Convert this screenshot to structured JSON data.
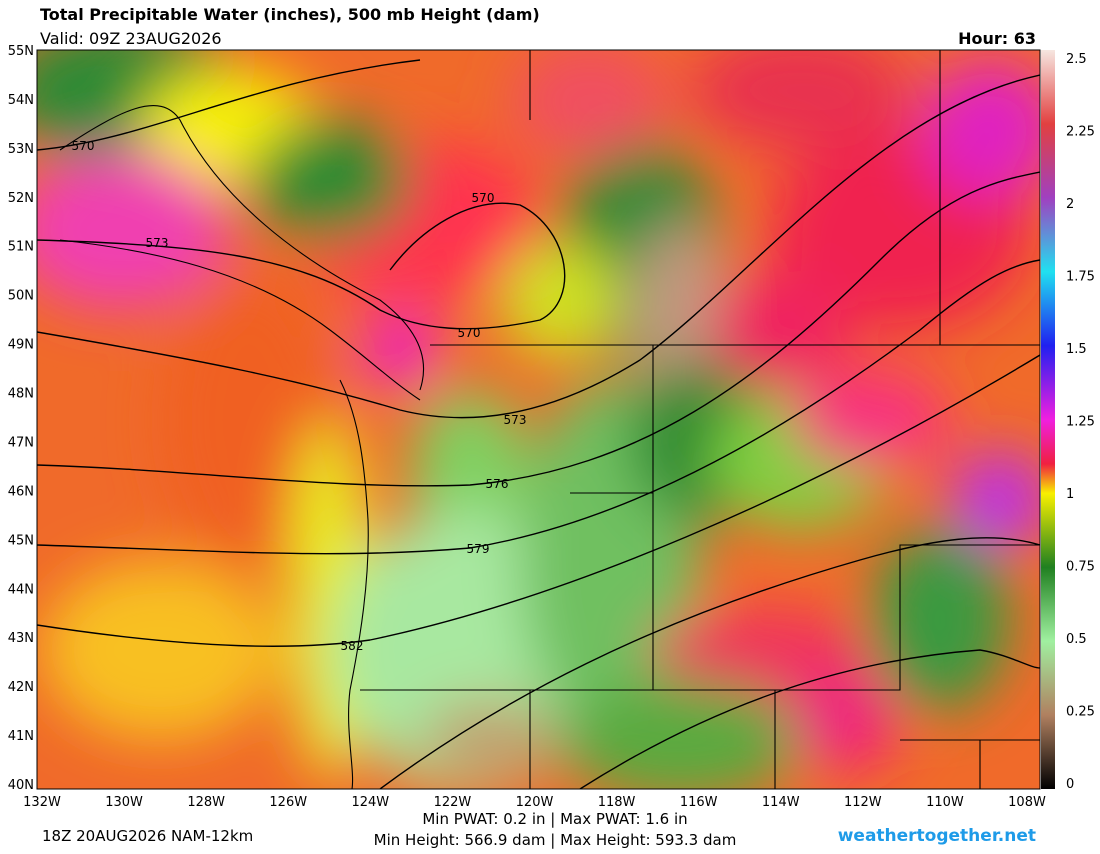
{
  "header": {
    "title": "Total Precipitable Water (inches), 500 mb Height (dam)",
    "valid": "Valid: 09Z 23AUG2026",
    "hour": "Hour: 63"
  },
  "map": {
    "lat_labels": [
      "55N",
      "54N",
      "53N",
      "52N",
      "51N",
      "50N",
      "49N",
      "48N",
      "47N",
      "46N",
      "45N",
      "44N",
      "43N",
      "42N",
      "41N",
      "40N"
    ],
    "lon_labels": [
      "132W",
      "130W",
      "128W",
      "126W",
      "124W",
      "122W",
      "120W",
      "118W",
      "116W",
      "114W",
      "112W",
      "110W",
      "108W"
    ],
    "contour_labels": [
      "570",
      "573",
      "570",
      "570",
      "573",
      "576",
      "579",
      "582"
    ]
  },
  "colorbar": {
    "ticks": [
      2.5,
      2.25,
      2,
      1.75,
      1.5,
      1.25,
      1,
      0.75,
      0.5,
      0.25,
      0
    ],
    "range": [
      0,
      2.5
    ]
  },
  "footer": {
    "run": "18Z 20AUG2026 NAM-12km",
    "pwat": "Min PWAT:  0.2 in | Max PWAT:   1.6 in",
    "height": "Min Height: 566.9 dam | Max Height: 593.3 dam",
    "site": "weathertogether.net"
  }
}
